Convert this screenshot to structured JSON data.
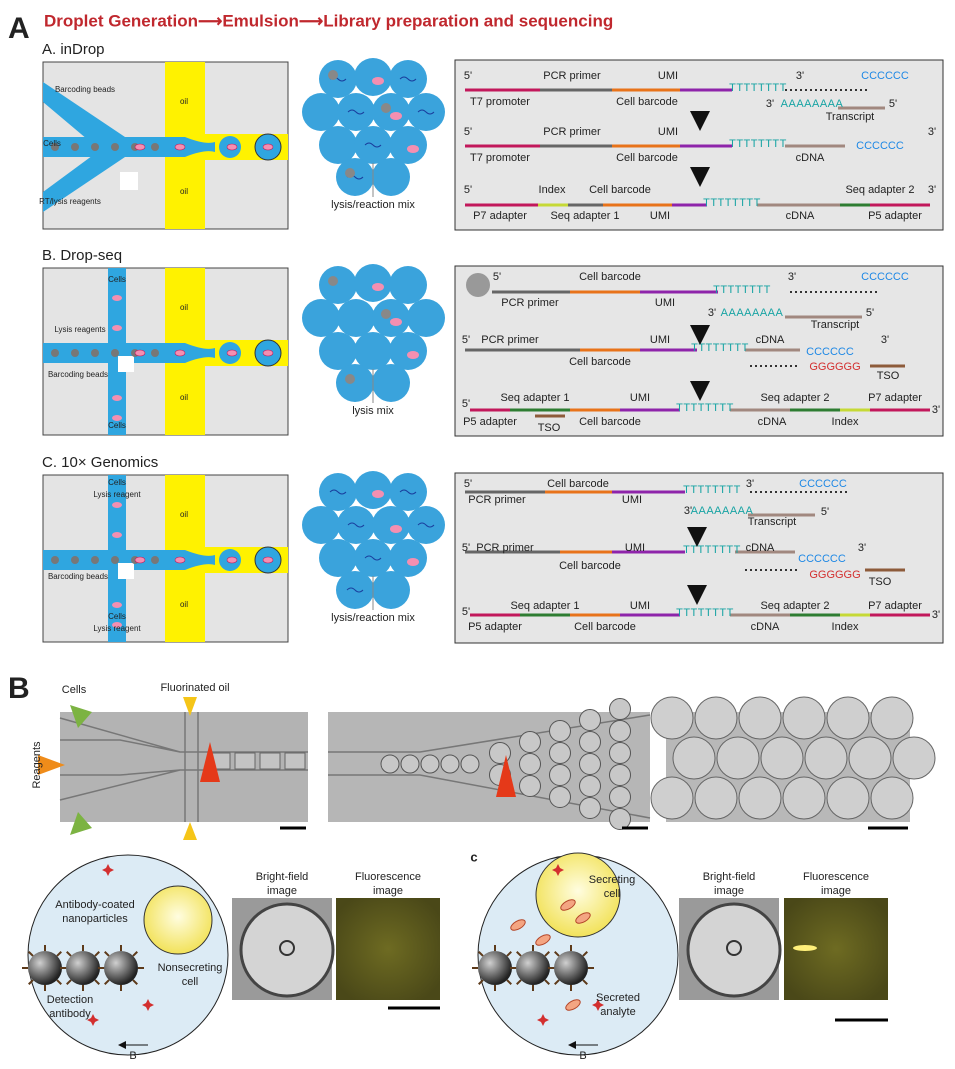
{
  "panel_a": {
    "letter": "A",
    "header": "Droplet Generation⟶Emulsion⟶Library preparation and sequencing",
    "sections": [
      {
        "title": "A. inDrop",
        "chip_labels": [
          "Barcoding beads",
          "Cells",
          "RT/lysis reagents",
          "oil",
          "oil"
        ],
        "mix_label": "lysis/reaction mix",
        "rows": [
          [
            "5'",
            "PCR primer",
            "UMI",
            "TTTTTTTT",
            "3'",
            "CCCCCC",
            "T7 promoter",
            "Cell barcode",
            "3'",
            "AAAAAAAA",
            "5'",
            "Transcript"
          ],
          [
            "5'",
            "PCR primer",
            "UMI",
            "3'",
            "T7 promoter",
            "Cell barcode",
            "TTTTTTTT",
            "cDNA",
            "CCCCCC"
          ],
          [
            "5'",
            "Index",
            "Cell barcode",
            "Seq adapter 2",
            "3'",
            "P7 adapter",
            "Seq adapter 1",
            "UMI",
            "TTTTTTTT",
            "cDNA",
            "P5 adapter"
          ]
        ]
      },
      {
        "title": "B. Drop-seq",
        "chip_labels": [
          "Cells",
          "Lysis reagents",
          "Barcoding beads",
          "Cells",
          "oil",
          "oil"
        ],
        "mix_label": "lysis mix",
        "rows": [
          [
            "5'",
            "Cell barcode",
            "3'",
            "CCCCCC",
            "PCR primer",
            "UMI",
            "TTTTTTTT",
            "3'",
            "AAAAAAAA",
            "5'",
            "Transcript"
          ],
          [
            "5'",
            "PCR primer",
            "UMI",
            "TTTTTTTT",
            "cDNA",
            "CCCCCC",
            "3'",
            "Cell barcode",
            "GGGGGG",
            "TSO"
          ],
          [
            "5'",
            "Seq adapter 1",
            "UMI",
            "Seq adapter 2",
            "P7 adapter",
            "3'",
            "P5 adapter",
            "TSO",
            "Cell barcode",
            "TTTTTTTT",
            "cDNA",
            "Index"
          ]
        ]
      },
      {
        "title": "C. 10× Genomics",
        "chip_labels": [
          "Cells",
          "Lysis reagent",
          "Barcoding beads",
          "Cells",
          "Lysis reagent",
          "oil",
          "oil"
        ],
        "mix_label": "lysis/reaction mix",
        "rows": [
          [
            "5'",
            "Cell barcode",
            "3'",
            "CCCCCC",
            "PCR primer",
            "UMI",
            "TTTTTTTT",
            "3'",
            "AAAAAAAA",
            "Transcript",
            "5'"
          ],
          [
            "5'",
            "PCR primer",
            "UMI",
            "TTTTTTTT",
            "cDNA",
            "3'",
            "Cell barcode",
            "CCCCCC",
            "GGGGGG",
            "TSO"
          ],
          [
            "5'",
            "Seq adapter 1",
            "UMI",
            "Seq adapter 2",
            "P7 adapter",
            "3'",
            "P5 adapter",
            "Cell barcode",
            "TTTTTTTT",
            "cDNA",
            "Index"
          ]
        ]
      }
    ]
  },
  "panel_b": {
    "letter": "B",
    "labels": [
      "Cells",
      "Fluorinated oil",
      "Reagents"
    ]
  },
  "assay_left": {
    "nanoparticles": [
      "Antibody-coated",
      "nanoparticles"
    ],
    "cell": [
      "Nonsecreting",
      "cell"
    ],
    "antibody": [
      "Detection",
      "antibody"
    ],
    "arrow_label": "B",
    "bright_field": [
      "Bright-field",
      "image"
    ],
    "fluorescence": [
      "Fluorescence",
      "image"
    ]
  },
  "assay_right": {
    "letter": "c",
    "cell": [
      "Secreting",
      "cell"
    ],
    "analyte": [
      "Secreted",
      "analyte"
    ],
    "arrow_label": "B",
    "bright_field": [
      "Bright-field",
      "image"
    ],
    "fluorescence": [
      "Fluorescence",
      "image"
    ]
  }
}
